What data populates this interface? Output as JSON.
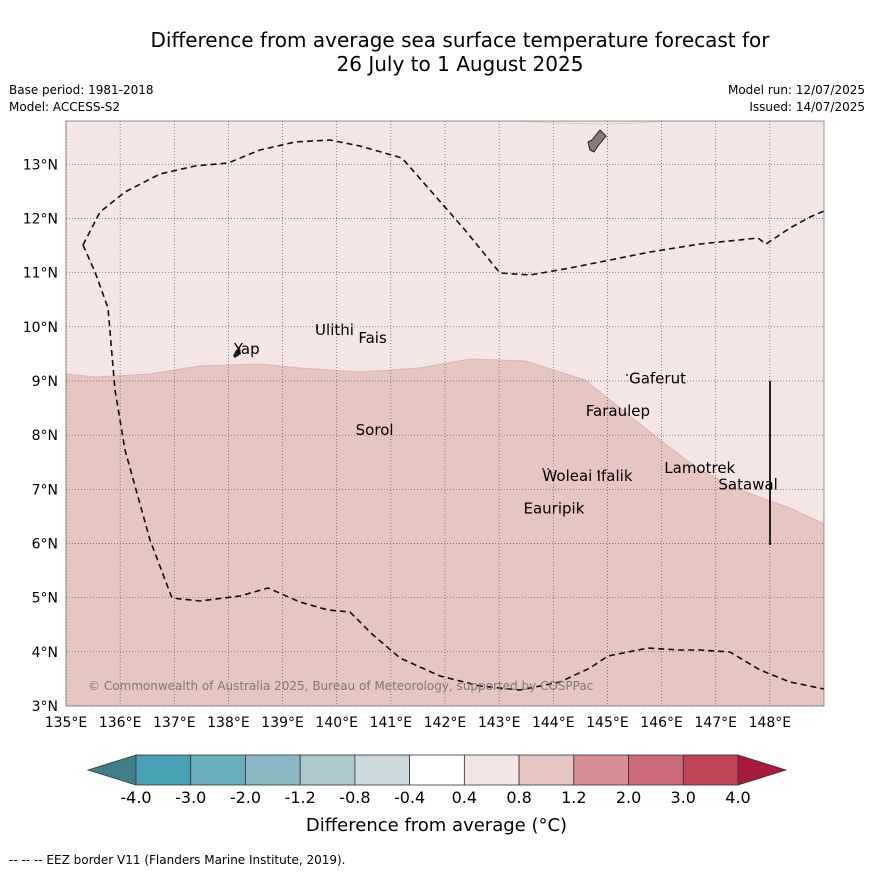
{
  "title_line1": "Difference from average sea surface temperature forecast for",
  "title_line2": "26 July to 1 August 2025",
  "base_period": "Base period: 1981-2018",
  "model": "Model: ACCESS-S2",
  "model_run": "Model run: 12/07/2025",
  "issued": "Issued: 14/07/2025",
  "copyright": "© Commonwealth of Australia 2025, Bureau of Meteorology, supported by COSPPac",
  "footer": "--  --  -- EEZ border V11 (Flanders Marine Institute, 2019).",
  "map": {
    "lon_range": [
      135,
      149
    ],
    "lat_range": [
      3,
      13.8
    ],
    "lon_ticks": [
      "135°E",
      "136°E",
      "137°E",
      "138°E",
      "139°E",
      "140°E",
      "141°E",
      "142°E",
      "143°E",
      "144°E",
      "145°E",
      "146°E",
      "147°E",
      "148°E"
    ],
    "lat_ticks": [
      "3°N",
      "4°N",
      "5°N",
      "6°N",
      "7°N",
      "8°N",
      "9°N",
      "10°N",
      "11°N",
      "12°N",
      "13°N"
    ],
    "colors": {
      "band_04_08": "#f4e6e4",
      "band_08_12": "#e6c6c1",
      "land": "#8a7b7a",
      "grid": "#555555"
    },
    "places": [
      {
        "name": "Yap",
        "lon": 138.1,
        "lat": 9.5
      },
      {
        "name": "Ulithi",
        "lon": 139.6,
        "lat": 9.85
      },
      {
        "name": "Fais",
        "lon": 140.4,
        "lat": 9.7
      },
      {
        "name": "Gaferut",
        "lon": 145.4,
        "lat": 8.95
      },
      {
        "name": "Faraulep",
        "lon": 144.6,
        "lat": 8.35
      },
      {
        "name": "Sorol",
        "lon": 140.35,
        "lat": 8.0
      },
      {
        "name": "Lamotrek",
        "lon": 146.05,
        "lat": 7.3
      },
      {
        "name": "Woleai",
        "lon": 143.8,
        "lat": 7.15
      },
      {
        "name": "Ifalik",
        "lon": 144.8,
        "lat": 7.15
      },
      {
        "name": "Satawal",
        "lon": 147.05,
        "lat": 7.0
      },
      {
        "name": "Eauripik",
        "lon": 143.45,
        "lat": 6.55
      }
    ]
  },
  "colorbar": {
    "labels": [
      "-4.0",
      "-3.0",
      "-2.0",
      "-1.2",
      "-0.8",
      "-0.4",
      "0.4",
      "0.8",
      "1.2",
      "2.0",
      "3.0",
      "4.0"
    ],
    "colors": [
      "#3f7f89",
      "#45a1b3",
      "#6aaebd",
      "#8bb7c2",
      "#aac8cd",
      "#c9d9dc",
      "#ffffff",
      "#f4e6e4",
      "#e6c6c1",
      "#d78f95",
      "#cd6a77",
      "#bf4456",
      "#a81a3c"
    ],
    "title": "Difference from average (°C)"
  }
}
